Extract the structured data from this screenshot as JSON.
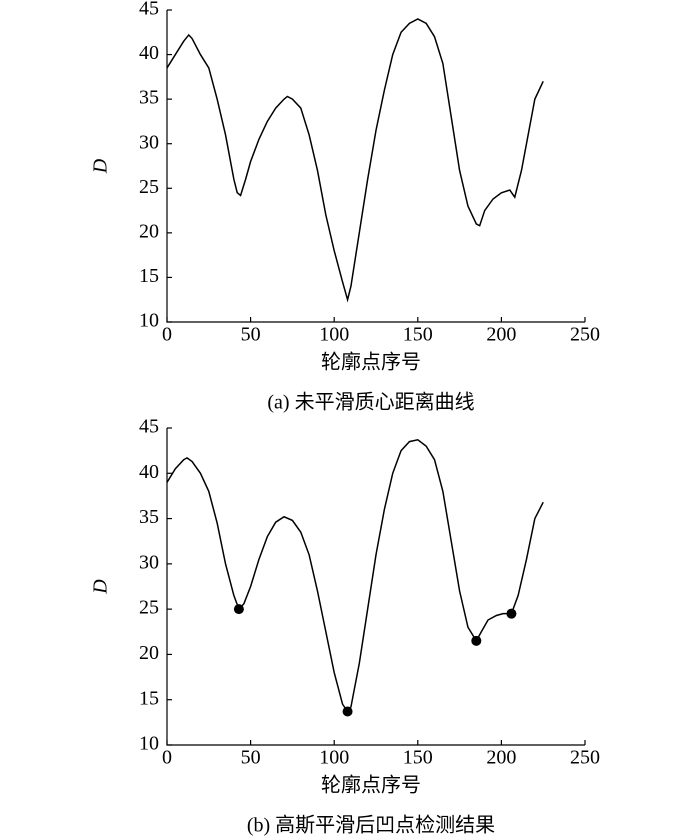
{
  "chart_data": [
    {
      "type": "line",
      "color": "#000000",
      "x": [
        0,
        5,
        10,
        13,
        15,
        20,
        25,
        30,
        35,
        40,
        42,
        44,
        47,
        50,
        55,
        60,
        65,
        70,
        72,
        75,
        80,
        85,
        90,
        95,
        100,
        105,
        108,
        110,
        115,
        120,
        125,
        130,
        135,
        140,
        145,
        150,
        155,
        160,
        165,
        170,
        175,
        180,
        185,
        187,
        190,
        195,
        200,
        205,
        208,
        212,
        215,
        220,
        225
      ],
      "values": [
        38.5,
        40,
        41.5,
        42.2,
        41.8,
        40,
        38.5,
        35,
        31,
        26,
        24.5,
        24.2,
        26,
        28,
        30.5,
        32.5,
        34,
        35,
        35.3,
        35,
        34,
        31,
        27,
        22,
        18,
        14.5,
        12.5,
        14,
        20,
        26,
        31.5,
        36,
        40,
        42.5,
        43.5,
        44,
        43.5,
        42,
        39,
        33,
        27,
        23,
        21,
        20.8,
        22.5,
        23.8,
        24.5,
        24.8,
        24,
        27,
        30,
        35,
        37
      ],
      "xlim": [
        0,
        250
      ],
      "ylim": [
        10,
        45
      ],
      "xticks": [
        0,
        50,
        100,
        150,
        200,
        250
      ],
      "yticks": [
        10,
        15,
        20,
        25,
        30,
        35,
        40,
        45
      ],
      "xlabel": "轮廓点序号",
      "ylabel": "D",
      "caption": "(a) 未平滑质心距离曲线"
    },
    {
      "type": "line",
      "color": "#000000",
      "x": [
        0,
        5,
        10,
        12,
        15,
        20,
        25,
        30,
        35,
        40,
        43,
        46,
        50,
        55,
        60,
        65,
        70,
        75,
        80,
        85,
        90,
        95,
        100,
        105,
        108,
        110,
        115,
        120,
        125,
        130,
        135,
        140,
        145,
        150,
        155,
        160,
        165,
        170,
        175,
        180,
        185,
        188,
        192,
        197,
        201,
        206,
        210,
        215,
        220,
        225
      ],
      "values": [
        39,
        40.5,
        41.5,
        41.7,
        41.3,
        40,
        38,
        34.5,
        30,
        26.5,
        25,
        25.6,
        27.5,
        30.5,
        33,
        34.6,
        35.2,
        34.8,
        33.5,
        31,
        27,
        22.5,
        18,
        14.5,
        13.7,
        14.2,
        19,
        25,
        31,
        36,
        40,
        42.5,
        43.5,
        43.7,
        43,
        41.5,
        38,
        32.5,
        27,
        23,
        21.5,
        22.5,
        23.8,
        24.3,
        24.5,
        24.5,
        26.5,
        30.5,
        35,
        36.8
      ],
      "points": {
        "x": [
          43,
          108,
          185,
          206
        ],
        "values": [
          25,
          13.7,
          21.5,
          24.5
        ]
      },
      "xlim": [
        0,
        250
      ],
      "ylim": [
        10,
        45
      ],
      "xticks": [
        0,
        50,
        100,
        150,
        200,
        250
      ],
      "yticks": [
        10,
        15,
        20,
        25,
        30,
        35,
        40,
        45
      ],
      "xlabel": "轮廓点序号",
      "ylabel": "D",
      "caption": "(b) 高斯平滑后凹点检测结果"
    }
  ]
}
